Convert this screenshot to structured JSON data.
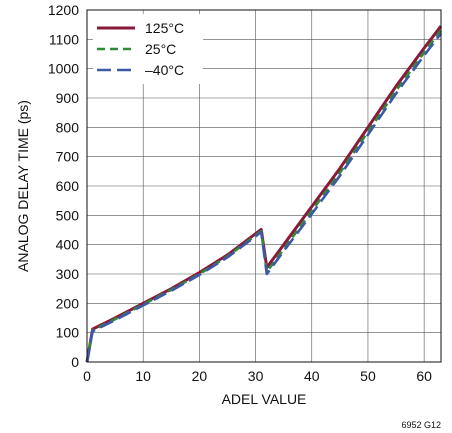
{
  "chart_data": {
    "type": "line",
    "title": "",
    "xlabel": "ADEL VALUE",
    "ylabel": "ANALOG DELAY TIME (ps)",
    "xlim": [
      0,
      63
    ],
    "ylim": [
      0,
      1200
    ],
    "xticks": [
      0,
      10,
      20,
      30,
      40,
      50,
      60
    ],
    "yticks": [
      0,
      100,
      200,
      300,
      400,
      500,
      600,
      700,
      800,
      900,
      1000,
      1100,
      1200
    ],
    "grid": true,
    "legend_position": "top-left",
    "series": [
      {
        "name": "125°C",
        "color": "#8b1a3a",
        "dash": "solid",
        "points": [
          [
            0,
            0
          ],
          [
            1,
            112
          ],
          [
            5,
            150
          ],
          [
            10,
            200
          ],
          [
            15,
            250
          ],
          [
            20,
            305
          ],
          [
            25,
            365
          ],
          [
            31,
            452
          ],
          [
            32,
            322
          ],
          [
            35,
            400
          ],
          [
            40,
            530
          ],
          [
            45,
            660
          ],
          [
            50,
            800
          ],
          [
            55,
            940
          ],
          [
            60,
            1070
          ],
          [
            63,
            1145
          ]
        ]
      },
      {
        "name": "25°C",
        "color": "#2e8b3a",
        "dash": "dashed",
        "points": [
          [
            0,
            0
          ],
          [
            1,
            108
          ],
          [
            5,
            146
          ],
          [
            10,
            196
          ],
          [
            15,
            246
          ],
          [
            20,
            300
          ],
          [
            25,
            360
          ],
          [
            31,
            446
          ],
          [
            32,
            308
          ],
          [
            35,
            385
          ],
          [
            40,
            515
          ],
          [
            45,
            645
          ],
          [
            50,
            785
          ],
          [
            55,
            925
          ],
          [
            60,
            1055
          ],
          [
            63,
            1130
          ]
        ]
      },
      {
        "name": "–40°C",
        "color": "#3a5aa8",
        "dash": "longdash",
        "points": [
          [
            0,
            0
          ],
          [
            1,
            105
          ],
          [
            5,
            143
          ],
          [
            10,
            193
          ],
          [
            15,
            243
          ],
          [
            20,
            297
          ],
          [
            25,
            357
          ],
          [
            31,
            443
          ],
          [
            32,
            300
          ],
          [
            35,
            378
          ],
          [
            40,
            505
          ],
          [
            45,
            635
          ],
          [
            50,
            775
          ],
          [
            55,
            915
          ],
          [
            60,
            1045
          ],
          [
            63,
            1120
          ]
        ]
      }
    ]
  },
  "figure_id": "6952 G12"
}
